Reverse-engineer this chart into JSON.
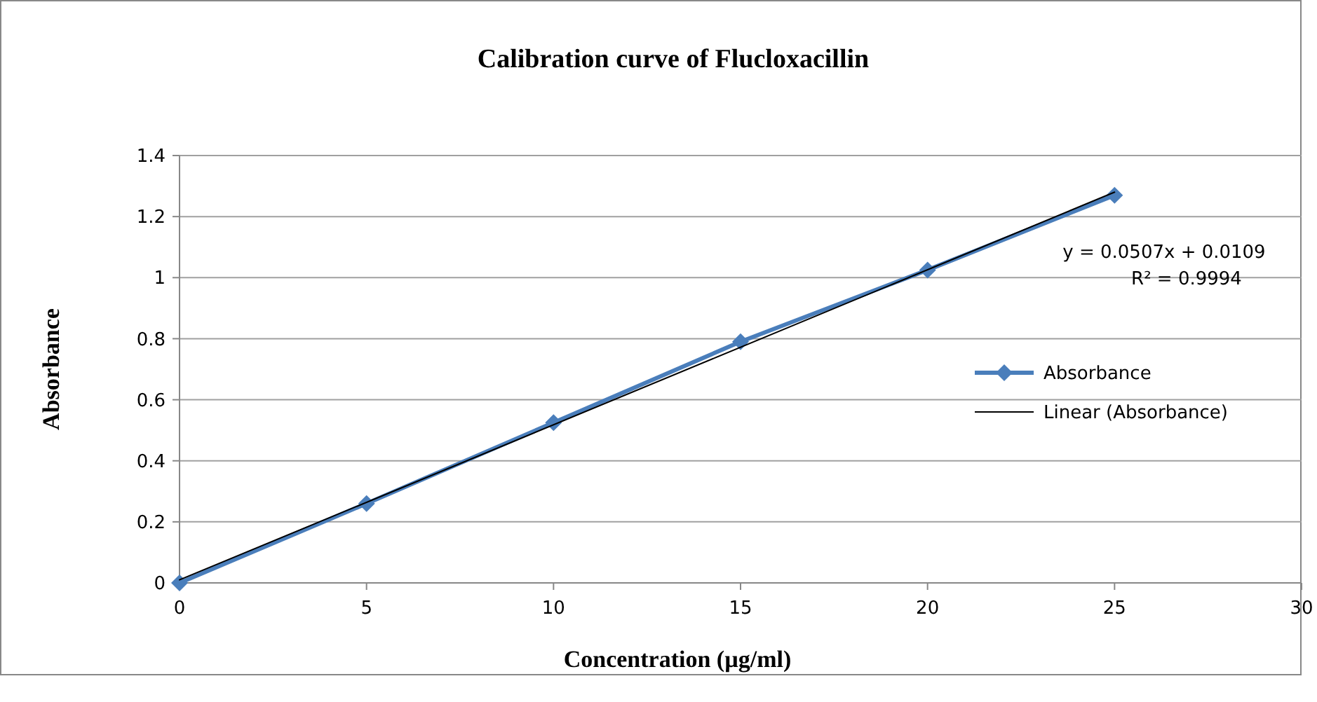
{
  "chart_data": {
    "type": "line",
    "title": "Calibration  curve of Flucloxacillin",
    "xlabel": "Concentration  (µg/ml)",
    "ylabel": "Absorbance",
    "x": [
      0,
      5,
      10,
      15,
      20,
      25
    ],
    "series": [
      {
        "name": "Absorbance",
        "color": "#4a7ebb",
        "values": [
          0,
          0.26,
          0.525,
          0.79,
          1.025,
          1.27
        ],
        "marker": "diamond"
      },
      {
        "name": "Linear (Absorbance)",
        "type": "line",
        "color": "#000000",
        "x": [
          0,
          25
        ],
        "values": [
          0.01,
          1.28
        ],
        "marker": "none"
      }
    ],
    "xlim": [
      0,
      30
    ],
    "xticks": [
      0,
      5,
      10,
      15,
      20,
      25,
      30
    ],
    "ylim": [
      0,
      1.4
    ],
    "yticks": [
      0,
      0.2,
      0.4,
      0.6,
      0.8,
      1,
      1.2,
      1.4
    ],
    "grid": "y",
    "legend": "right",
    "line_style": "solid",
    "annotations": [
      "y = 0.0507x + 0.0109",
      "R² = 0.9994"
    ]
  }
}
